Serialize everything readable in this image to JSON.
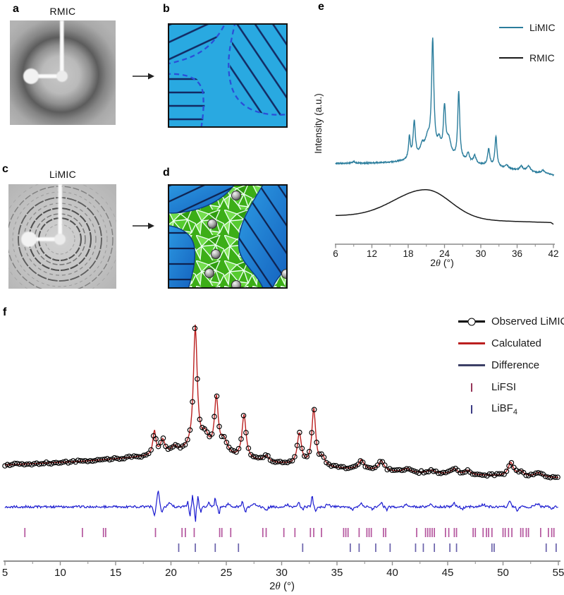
{
  "figure": {
    "panels": {
      "a": {
        "letter": "a",
        "title": "RMIC",
        "description": "2D X-ray diffraction image with diffuse amorphous halo and beamstop"
      },
      "b": {
        "letter": "b",
        "description": "schematic of amorphous polymer with crystalline lamellae domains (dashed boundaries)"
      },
      "c": {
        "letter": "c",
        "title": "LiMIC",
        "description": "2D X-ray diffraction image with sharp Debye-Scherrer rings and beamstop"
      },
      "d": {
        "letter": "d",
        "description": "schematic of polycrystalline salt matrix (green) with polymer lamellae domains (blue) and Li-ion spheres"
      },
      "e": {
        "letter": "e"
      },
      "f": {
        "letter": "f"
      }
    },
    "colors": {
      "panel_b_background": "#29a9e1",
      "hatch_navy": "#122a63",
      "dashed_boundary": "#2b4fd8",
      "panel_d_green": "#3cae17",
      "panel_d_blue": "#1f7fd0",
      "sphere_gray": "#8f8f8f"
    }
  },
  "chart_data": [
    {
      "panel": "e",
      "type": "line",
      "title": "",
      "xlabel": "2θ (°)",
      "ylabel": "Intensity (a.u.)",
      "xlim": [
        6,
        42
      ],
      "x_major_ticks": [
        6,
        12,
        18,
        24,
        30,
        36,
        42
      ],
      "x_minor_tick_offset": 3,
      "grid": false,
      "legend_position": "top-right",
      "series": [
        {
          "name": "LiMIC",
          "color": "#2b7d9c",
          "style": "sharp-peaks-over-flat-baseline",
          "peaks_2theta_height_hwhm": [
            [
              9.0,
              0.015,
              0.3
            ],
            [
              18.2,
              0.2,
              0.18
            ],
            [
              19.0,
              0.33,
              0.22
            ],
            [
              20.3,
              0.08,
              0.35
            ],
            [
              21.2,
              0.12,
              0.5
            ],
            [
              21.9,
              0.1,
              2.5
            ],
            [
              22.05,
              1.0,
              0.22
            ],
            [
              23.1,
              0.1,
              0.3
            ],
            [
              24.0,
              0.42,
              0.22
            ],
            [
              24.7,
              0.16,
              0.45
            ],
            [
              26.35,
              0.62,
              0.2
            ],
            [
              27.9,
              0.08,
              0.25
            ],
            [
              29.0,
              0.07,
              0.25
            ],
            [
              31.3,
              0.15,
              0.22
            ],
            [
              32.5,
              0.28,
              0.2
            ],
            [
              34.3,
              0.03,
              0.3
            ],
            [
              36.7,
              0.04,
              0.3
            ],
            [
              37.9,
              0.05,
              0.35
            ],
            [
              40.3,
              0.03,
              0.4
            ]
          ]
        },
        {
          "name": "RMIC",
          "color": "#1a1a1a",
          "style": "broad-amorphous-hump",
          "hump_center": 21,
          "hump_height": 0.265,
          "sigma_left": 5.3,
          "sigma_right": 4.0
        }
      ]
    },
    {
      "panel": "f",
      "type": "line",
      "title": "",
      "xlabel": "2θ (°)",
      "xlim": [
        5,
        55
      ],
      "x_major_ticks": [
        5,
        10,
        15,
        20,
        25,
        30,
        35,
        40,
        45,
        50,
        55
      ],
      "x_minor_tick_step": 2.5,
      "grid": false,
      "legend_position": "top-right",
      "peaks_2theta_height_hwhm": [
        [
          18.5,
          0.2,
          0.16
        ],
        [
          19.25,
          0.12,
          0.25
        ],
        [
          20.3,
          0.05,
          0.3
        ],
        [
          22.2,
          1.0,
          0.2
        ],
        [
          22.6,
          0.08,
          1.8
        ],
        [
          23.1,
          0.1,
          0.3
        ],
        [
          24.1,
          0.44,
          0.2
        ],
        [
          24.8,
          0.11,
          0.35
        ],
        [
          26.6,
          0.36,
          0.22
        ],
        [
          28.6,
          0.05,
          0.3
        ],
        [
          31.6,
          0.26,
          0.22
        ],
        [
          32.9,
          0.47,
          0.2
        ],
        [
          33.7,
          0.07,
          0.25
        ],
        [
          37.2,
          0.08,
          0.3
        ],
        [
          39.0,
          0.08,
          0.3
        ],
        [
          41.3,
          0.03,
          0.35
        ],
        [
          43.5,
          0.025,
          0.4
        ],
        [
          45.6,
          0.045,
          0.3
        ],
        [
          46.8,
          0.035,
          0.3
        ],
        [
          50.7,
          0.11,
          0.28
        ],
        [
          51.6,
          0.04,
          0.3
        ],
        [
          53.2,
          0.035,
          0.4
        ]
      ],
      "baseline_anchors_x_ypx": [
        [
          5,
          229
        ],
        [
          12,
          224
        ],
        [
          17,
          219
        ],
        [
          21,
          217.5
        ],
        [
          25,
          221
        ],
        [
          29,
          227
        ],
        [
          33,
          231.5
        ],
        [
          37,
          236
        ],
        [
          42,
          240
        ],
        [
          47,
          243
        ],
        [
          55,
          247
        ]
      ],
      "difference_features_x_amp_width": [
        [
          18.5,
          -14,
          0.1
        ],
        [
          18.85,
          22,
          0.13
        ],
        [
          19.2,
          -8,
          0.1
        ],
        [
          19.9,
          5,
          0.25
        ],
        [
          21.5,
          8,
          0.07
        ],
        [
          21.7,
          -16,
          0.06
        ],
        [
          21.95,
          18,
          0.06
        ],
        [
          22.2,
          -24,
          0.06
        ],
        [
          22.45,
          16,
          0.06
        ],
        [
          22.7,
          -10,
          0.07
        ],
        [
          23.4,
          5,
          0.15
        ],
        [
          24.0,
          13,
          0.08
        ],
        [
          24.35,
          -11,
          0.08
        ],
        [
          25.2,
          4,
          0.2
        ],
        [
          26.45,
          8,
          0.08
        ],
        [
          26.75,
          -8,
          0.08
        ],
        [
          27.5,
          4,
          0.2
        ],
        [
          28.6,
          -4,
          0.2
        ],
        [
          30.5,
          3,
          0.2
        ],
        [
          31.55,
          8,
          0.1
        ],
        [
          31.9,
          -5,
          0.1
        ],
        [
          32.75,
          17,
          0.08
        ],
        [
          33.1,
          -8,
          0.09
        ],
        [
          34.2,
          4,
          0.2
        ],
        [
          36.4,
          -4,
          0.2
        ],
        [
          37.2,
          6,
          0.12
        ],
        [
          38.2,
          -3,
          0.2
        ],
        [
          39.0,
          6,
          0.15
        ],
        [
          39.5,
          -5,
          0.12
        ],
        [
          41.3,
          4,
          0.2
        ],
        [
          43.4,
          3,
          0.25
        ],
        [
          45.6,
          5,
          0.15
        ],
        [
          46.3,
          -4,
          0.15
        ],
        [
          48.2,
          3,
          0.25
        ],
        [
          50.6,
          7,
          0.15
        ],
        [
          51.3,
          -5,
          0.15
        ],
        [
          53.1,
          4,
          0.25
        ],
        [
          54.4,
          -3,
          0.2
        ]
      ],
      "series": [
        {
          "name": "Observed LiMIC",
          "marker": "open-circle",
          "color": "#000000"
        },
        {
          "name": "Calculated",
          "color": "#bb2020"
        },
        {
          "name": "Difference",
          "color": "#1b1bd0",
          "legend_color": "#3c4066"
        },
        {
          "name": "LiFSI",
          "marker": "bragg-tick",
          "color": "#b4569e",
          "legend_color": "#97375a",
          "tick_positions": [
            6.8,
            12.0,
            13.9,
            14.1,
            18.6,
            21.0,
            21.3,
            22.1,
            24.4,
            24.6,
            25.4,
            28.3,
            28.6,
            30.2,
            31.2,
            32.6,
            32.9,
            33.6,
            35.6,
            35.8,
            36.0,
            37.0,
            37.7,
            37.9,
            38.1,
            39.2,
            39.4,
            42.2,
            43.0,
            43.2,
            43.4,
            43.6,
            43.8,
            44.8,
            45.1,
            45.6,
            45.8,
            47.3,
            47.5,
            48.2,
            48.5,
            48.7,
            49.0,
            50.0,
            50.2,
            50.5,
            50.8,
            51.6,
            51.8,
            52.1,
            52.3,
            53.4,
            54.1,
            54.4,
            54.6
          ]
        },
        {
          "name": "LiBF4",
          "label_main": "LiBF",
          "label_sub": "4",
          "marker": "bragg-tick",
          "color": "#6a62ab",
          "legend_color": "#3d3d85",
          "tick_positions": [
            20.7,
            22.2,
            24.0,
            26.1,
            31.9,
            36.2,
            37.0,
            38.5,
            39.8,
            42.1,
            42.8,
            43.8,
            45.2,
            45.8,
            49.0,
            49.2,
            53.9,
            54.8
          ]
        }
      ]
    }
  ]
}
